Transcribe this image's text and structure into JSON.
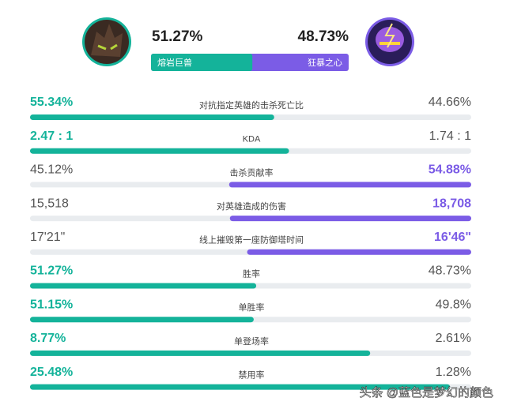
{
  "header": {
    "left": {
      "name": "熔岩巨兽",
      "percent": 51.27,
      "percent_label": "51.27%",
      "color": "#14b39a"
    },
    "right": {
      "name": "狂暴之心",
      "percent": 48.73,
      "percent_label": "48.73%",
      "color": "#7b5ce6"
    }
  },
  "bar_lim": [
    0,
    100
  ],
  "rows": [
    {
      "label": "对抗指定英雄的击杀死亡比",
      "left": "55.34%",
      "right": "44.66%",
      "winner": "left",
      "bar": 55.34
    },
    {
      "label": "KDA",
      "left": "2.47 : 1",
      "right": "1.74 : 1",
      "winner": "left",
      "bar": 58.7
    },
    {
      "label": "击杀贡献率",
      "left": "45.12%",
      "right": "54.88%",
      "winner": "right",
      "bar": 54.88
    },
    {
      "label": "对英雄造成的伤害",
      "left": "15,518",
      "right": "18,708",
      "winner": "right",
      "bar": 54.7
    },
    {
      "label": "线上摧毁第一座防御塔时间",
      "left": "17'21\"",
      "right": "16'46\"",
      "winner": "right",
      "bar": 50.8
    },
    {
      "label": "胜率",
      "left": "51.27%",
      "right": "48.73%",
      "winner": "left",
      "bar": 51.27
    },
    {
      "label": "单胜率",
      "left": "51.15%",
      "right": "49.8%",
      "winner": "left",
      "bar": 50.7
    },
    {
      "label": "单登场率",
      "left": "8.77%",
      "right": "2.61%",
      "winner": "left",
      "bar": 77.1
    },
    {
      "label": "禁用率",
      "left": "25.48%",
      "right": "1.28%",
      "winner": "left",
      "bar": 95.2
    }
  ],
  "watermark": "头条 @蓝色是梦幻的颜色"
}
